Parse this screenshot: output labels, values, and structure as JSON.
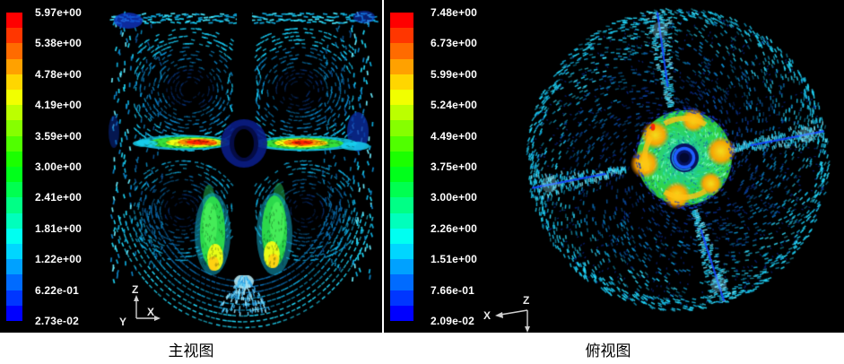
{
  "figure": {
    "background": "#ffffff",
    "panel_background": "#000000"
  },
  "panels": [
    {
      "name": "front-view",
      "caption": "主视图",
      "legend": {
        "labels": [
          "5.97e+00",
          "5.38e+00",
          "4.78e+00",
          "4.19e+00",
          "3.59e+00",
          "3.00e+00",
          "2.41e+00",
          "1.81e+00",
          "1.22e+00",
          "6.22e-01",
          "2.73e-02"
        ]
      },
      "axis_triad": {
        "z": "Z",
        "x": "X",
        "y": "Y"
      }
    },
    {
      "name": "top-view",
      "caption": "俯视图",
      "legend": {
        "labels": [
          "7.48e+00",
          "6.73e+00",
          "5.99e+00",
          "5.24e+00",
          "4.49e+00",
          "3.75e+00",
          "3.00e+00",
          "2.26e+00",
          "1.51e+00",
          "7.66e-01",
          "2.09e-02"
        ]
      },
      "axis_triad": {
        "x": "X",
        "z": "Z"
      }
    }
  ],
  "legend_band_colors": [
    "#ff0000",
    "#ff3600",
    "#ff6b00",
    "#ffa100",
    "#ffd600",
    "#f1ff00",
    "#bcff00",
    "#86ff00",
    "#50ff00",
    "#1bff00",
    "#00ff1b",
    "#00ff50",
    "#00ff86",
    "#00ffbc",
    "#00fff1",
    "#00d6ff",
    "#00a1ff",
    "#006bff",
    "#0036ff",
    "#0000ff"
  ],
  "palette": {
    "vector_cyan": "#22dcff",
    "vector_blue": "#0c86c8",
    "vector_navy": "#0a2da0",
    "jet_red": "#ff1e00",
    "jet_orange": "#ff8c00",
    "jet_yellow": "#f2ff14",
    "jet_green": "#35e03a",
    "impeller_green": "#2ad87a",
    "baffle_line_blue": "#1646ff",
    "text_white": "#ffffff",
    "caption_black": "#000000"
  },
  "chart_data": [
    {
      "type": "heatmap",
      "plot_kind": "velocity-vector-field",
      "view": "front",
      "title": "主视图",
      "colormap": "rainbow-20-bands",
      "legend_position": "left",
      "legend_tick_values": [
        5.97,
        5.38,
        4.78,
        4.19,
        3.59,
        3.0,
        2.41,
        1.81,
        1.22,
        0.622,
        0.0273
      ],
      "value_range": [
        0.0273,
        5.97
      ],
      "axes_shown": [
        "Z",
        "Y",
        "X"
      ]
    },
    {
      "type": "heatmap",
      "plot_kind": "velocity-vector-field",
      "view": "top",
      "title": "俯视图",
      "colormap": "rainbow-20-bands",
      "legend_position": "left",
      "legend_tick_values": [
        7.48,
        6.73,
        5.99,
        5.24,
        4.49,
        3.75,
        3.0,
        2.26,
        1.51,
        0.766,
        0.0209
      ],
      "value_range": [
        0.0209,
        7.48
      ],
      "axes_shown": [
        "X",
        "Z"
      ]
    }
  ]
}
